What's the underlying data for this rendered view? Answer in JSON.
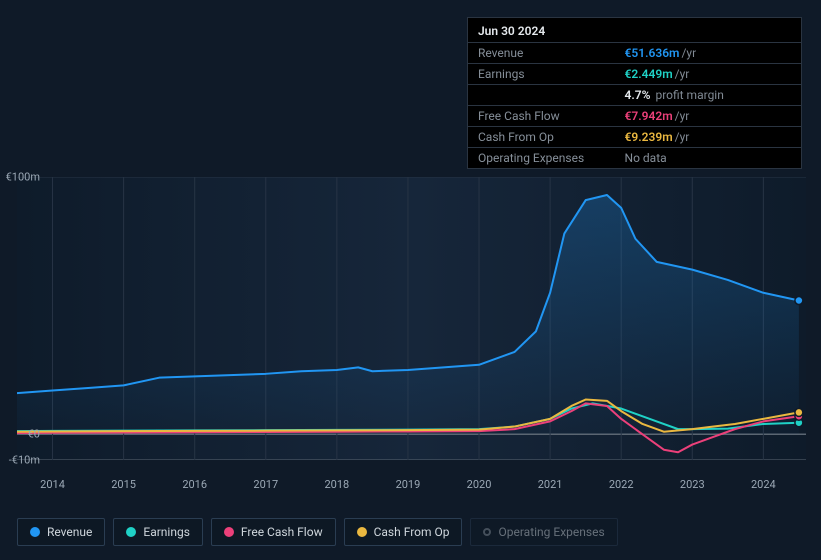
{
  "tooltip": {
    "date": "Jun 30 2024",
    "rows": [
      {
        "label": "Revenue",
        "value": "€51.636m",
        "unit": "/yr",
        "color": "#2196f3",
        "extra": null
      },
      {
        "label": "Earnings",
        "value": "€2.449m",
        "unit": "/yr",
        "color": "#1fd1c6",
        "extra": "4.7% profit margin"
      },
      {
        "label": "Free Cash Flow",
        "value": "€7.942m",
        "unit": "/yr",
        "color": "#ec407a",
        "extra": null
      },
      {
        "label": "Cash From Op",
        "value": "€9.239m",
        "unit": "/yr",
        "color": "#eab840",
        "extra": null
      },
      {
        "label": "Operating Expenses",
        "value": "No data",
        "unit": "",
        "color": "#868f99",
        "extra": null
      }
    ]
  },
  "chart": {
    "type": "line",
    "background_gradient": [
      "#16263a",
      "#0e1b2a"
    ],
    "grid_color": "#273445",
    "baseline_color": "#5b6672",
    "label_color": "#8b96a2",
    "label_fontsize": 11,
    "x_domain": [
      2013.5,
      2024.6
    ],
    "x_ticks": [
      2014,
      2015,
      2016,
      2017,
      2018,
      2019,
      2020,
      2021,
      2022,
      2023,
      2024
    ],
    "y_domain": [
      -10,
      100
    ],
    "y_ticks": [
      {
        "v": 100,
        "label": "€100m"
      },
      {
        "v": 0,
        "label": "€0"
      },
      {
        "v": -10,
        "label": "-€10m"
      }
    ],
    "series": [
      {
        "name": "Revenue",
        "color": "#2196f3",
        "fill": "rgba(33,150,243,0.15)",
        "line_width": 2,
        "enabled": true,
        "data": [
          [
            2013.5,
            16
          ],
          [
            2014,
            17
          ],
          [
            2014.5,
            18
          ],
          [
            2015,
            19
          ],
          [
            2015.5,
            22
          ],
          [
            2016,
            22.5
          ],
          [
            2016.5,
            23
          ],
          [
            2017,
            23.5
          ],
          [
            2017.5,
            24.5
          ],
          [
            2018,
            25
          ],
          [
            2018.3,
            26
          ],
          [
            2018.5,
            24.5
          ],
          [
            2019,
            25
          ],
          [
            2019.5,
            26
          ],
          [
            2020,
            27
          ],
          [
            2020.5,
            32
          ],
          [
            2020.8,
            40
          ],
          [
            2021,
            55
          ],
          [
            2021.2,
            78
          ],
          [
            2021.5,
            91
          ],
          [
            2021.8,
            93
          ],
          [
            2022,
            88
          ],
          [
            2022.2,
            76
          ],
          [
            2022.5,
            67
          ],
          [
            2023,
            64
          ],
          [
            2023.5,
            60
          ],
          [
            2024,
            55
          ],
          [
            2024.5,
            52
          ]
        ],
        "end_marker": true
      },
      {
        "name": "Earnings",
        "color": "#1fd1c6",
        "fill": "none",
        "line_width": 2,
        "enabled": true,
        "data": [
          [
            2013.5,
            1.2
          ],
          [
            2014,
            1.3
          ],
          [
            2015,
            1.4
          ],
          [
            2016,
            1.5
          ],
          [
            2017,
            1.6
          ],
          [
            2018,
            1.7
          ],
          [
            2019,
            1.8
          ],
          [
            2020,
            2
          ],
          [
            2020.5,
            3
          ],
          [
            2021,
            6
          ],
          [
            2021.3,
            10
          ],
          [
            2021.6,
            12
          ],
          [
            2022,
            10
          ],
          [
            2022.5,
            5
          ],
          [
            2022.8,
            2
          ],
          [
            2023,
            2
          ],
          [
            2023.5,
            2.2
          ],
          [
            2024,
            4
          ],
          [
            2024.5,
            4.5
          ]
        ],
        "end_marker": true
      },
      {
        "name": "Free Cash Flow",
        "color": "#ec407a",
        "fill": "none",
        "line_width": 2,
        "enabled": true,
        "data": [
          [
            2013.5,
            0.5
          ],
          [
            2014,
            0.6
          ],
          [
            2015,
            0.7
          ],
          [
            2016,
            0.8
          ],
          [
            2017,
            0.9
          ],
          [
            2018,
            1
          ],
          [
            2019,
            1.1
          ],
          [
            2020,
            1.2
          ],
          [
            2020.5,
            2
          ],
          [
            2021,
            5
          ],
          [
            2021.3,
            9
          ],
          [
            2021.5,
            12
          ],
          [
            2021.8,
            11
          ],
          [
            2022,
            6
          ],
          [
            2022.3,
            0
          ],
          [
            2022.6,
            -6
          ],
          [
            2022.8,
            -7
          ],
          [
            2023,
            -4
          ],
          [
            2023.3,
            -1
          ],
          [
            2023.6,
            2
          ],
          [
            2024,
            5
          ],
          [
            2024.5,
            7
          ]
        ],
        "end_marker": true
      },
      {
        "name": "Cash From Op",
        "color": "#eab840",
        "fill": "none",
        "line_width": 2,
        "enabled": true,
        "data": [
          [
            2013.5,
            1
          ],
          [
            2014,
            1.1
          ],
          [
            2015,
            1.2
          ],
          [
            2016,
            1.3
          ],
          [
            2017,
            1.4
          ],
          [
            2018,
            1.5
          ],
          [
            2019,
            1.6
          ],
          [
            2020,
            1.8
          ],
          [
            2020.5,
            3
          ],
          [
            2021,
            6
          ],
          [
            2021.3,
            11
          ],
          [
            2021.5,
            13.5
          ],
          [
            2021.8,
            13
          ],
          [
            2022,
            9
          ],
          [
            2022.3,
            4
          ],
          [
            2022.6,
            1
          ],
          [
            2023,
            2
          ],
          [
            2023.3,
            3
          ],
          [
            2023.6,
            4
          ],
          [
            2024,
            6
          ],
          [
            2024.5,
            8.5
          ]
        ],
        "end_marker": true
      },
      {
        "name": "Operating Expenses",
        "color": "#868f99",
        "fill": "none",
        "line_width": 2,
        "enabled": false,
        "data": [],
        "end_marker": false
      }
    ]
  },
  "legend": [
    {
      "label": "Revenue",
      "color": "#2196f3",
      "enabled": true
    },
    {
      "label": "Earnings",
      "color": "#1fd1c6",
      "enabled": true
    },
    {
      "label": "Free Cash Flow",
      "color": "#ec407a",
      "enabled": true
    },
    {
      "label": "Cash From Op",
      "color": "#eab840",
      "enabled": true
    },
    {
      "label": "Operating Expenses",
      "color": "#868f99",
      "enabled": false
    }
  ]
}
